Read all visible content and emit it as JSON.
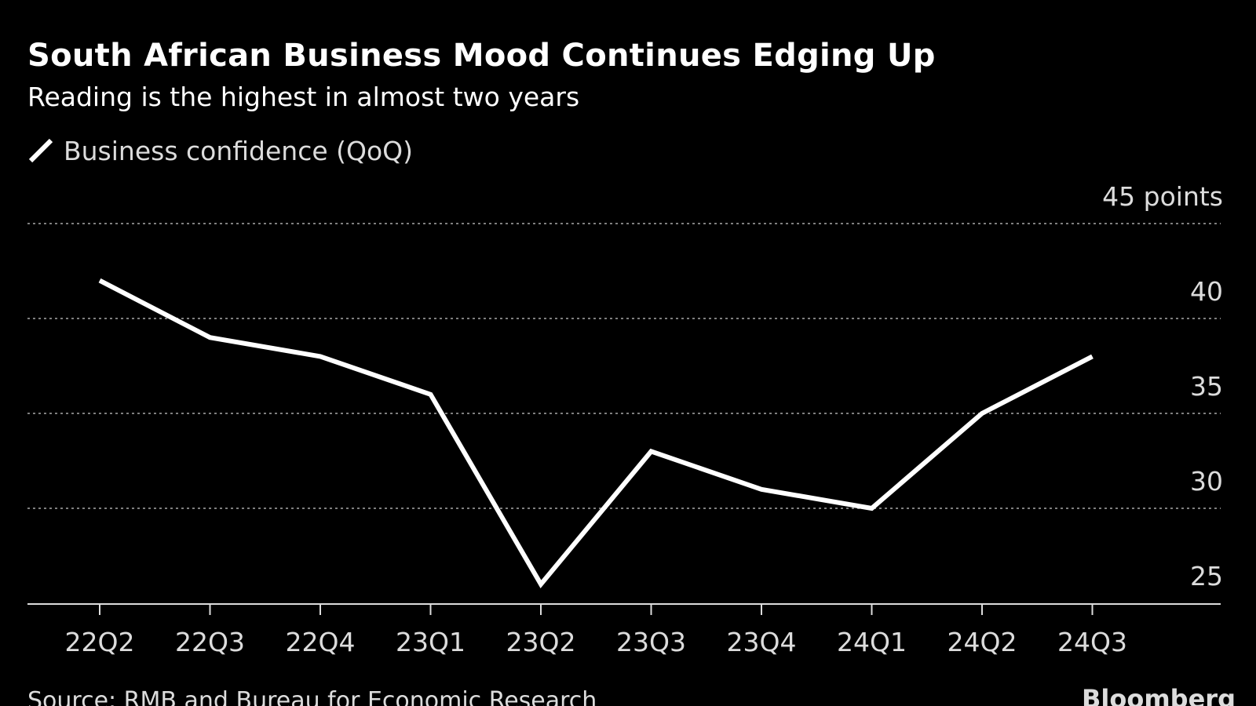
{
  "header": {
    "title": "South African Business Mood Continues Edging Up",
    "subtitle": "Reading is the highest in almost two years"
  },
  "legend": {
    "label": "Business confidence (QoQ)",
    "icon": "line-swatch-icon"
  },
  "footer": {
    "source": "Source: RMB and Bureau for Economic Research",
    "brand": "Bloomberg"
  },
  "colors": {
    "background": "#000000",
    "line": "#ffffff",
    "grid": "#7f7f7f",
    "text": "#dcdcdc"
  },
  "chart_data": {
    "type": "line",
    "title": "South African Business Mood Continues Edging Up",
    "subtitle": "Reading is the highest in almost two years",
    "categories": [
      "22Q2",
      "22Q3",
      "22Q4",
      "23Q1",
      "23Q2",
      "23Q3",
      "23Q4",
      "24Q1",
      "24Q2",
      "24Q3"
    ],
    "series": [
      {
        "name": "Business confidence (QoQ)",
        "values": [
          42,
          39,
          38,
          36,
          26,
          33,
          31,
          30,
          35,
          38
        ]
      }
    ],
    "ylim": [
      23,
      45
    ],
    "yticks": [
      25,
      30,
      35,
      40,
      45
    ],
    "ytick_labels": [
      "25",
      "30",
      "35",
      "40",
      "45 points"
    ],
    "y_axis_side": "right",
    "grid": "dotted horizontal",
    "legend_position": "top-left"
  }
}
